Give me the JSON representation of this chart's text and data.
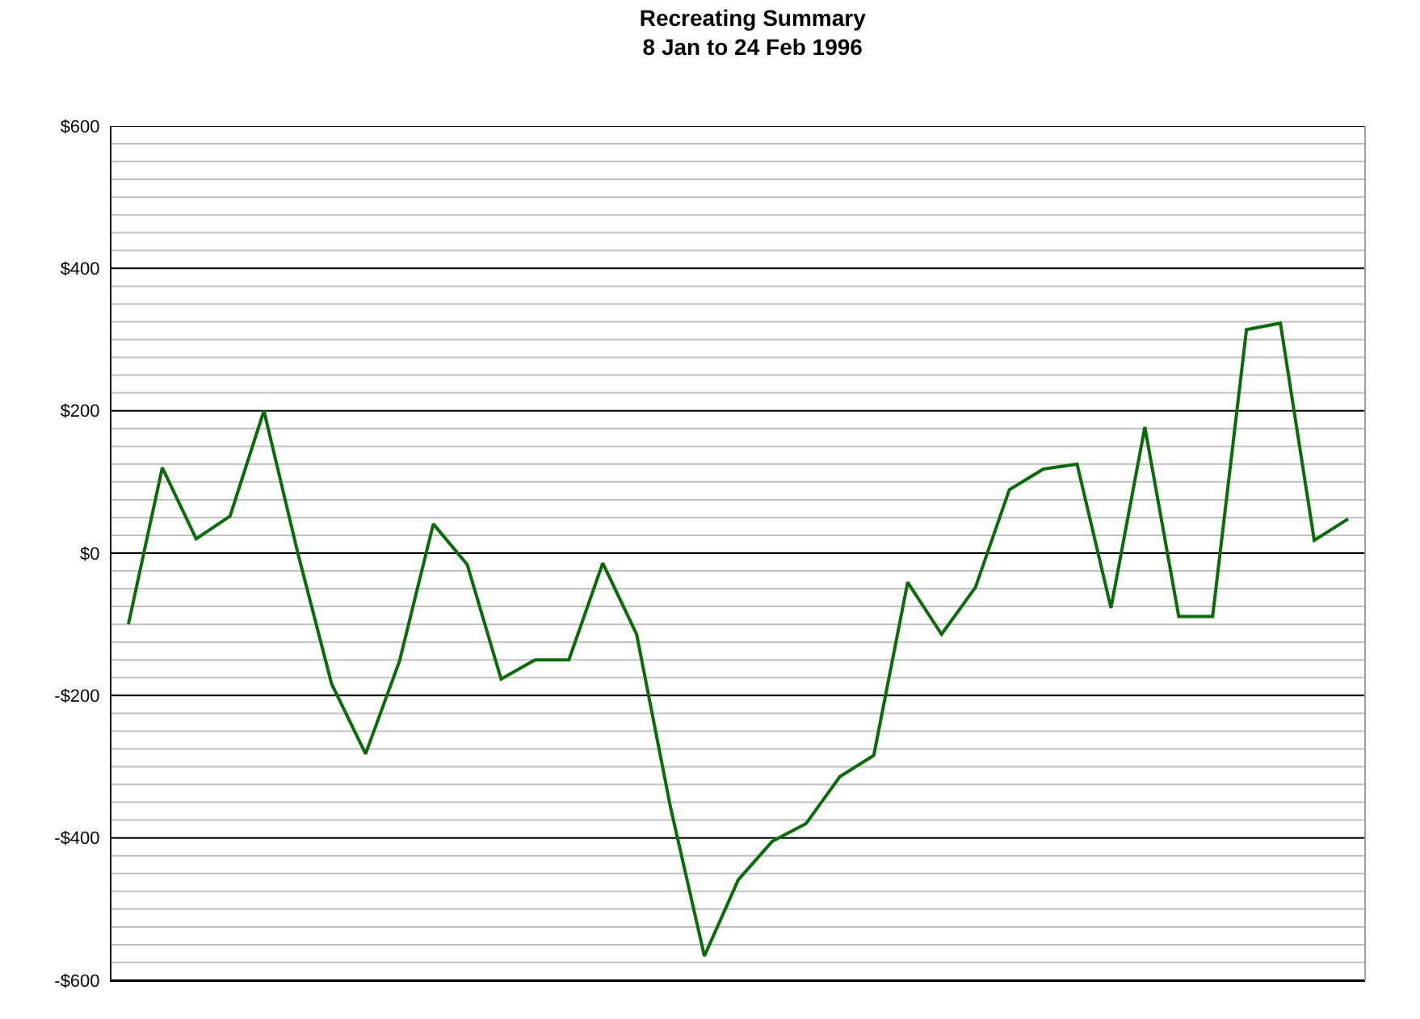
{
  "chart_data": {
    "type": "line",
    "title": "Recreating Summary\n8 Jan to 24 Feb 1996",
    "categories": [
      null,
      null,
      null,
      null,
      null,
      null,
      null,
      null,
      null,
      null,
      null,
      null,
      null,
      null,
      null,
      null,
      null,
      null,
      null,
      null,
      null,
      null,
      null,
      null,
      null,
      null,
      null,
      null,
      null,
      null,
      null,
      null,
      null,
      null,
      null,
      null,
      null
    ],
    "series": [
      {
        "color": "#0b6b0b",
        "values": [
          -100,
          120,
          20,
          52,
          200,
          0,
          -184,
          -282,
          -152,
          41,
          -16,
          -177,
          -150,
          -150,
          -14,
          -114,
          -357,
          -566,
          -459,
          -405,
          -380,
          -314,
          -284,
          -41,
          -114,
          -48,
          89,
          118,
          125,
          -77,
          177,
          -89,
          -89,
          314,
          323,
          18,
          48
        ]
      }
    ],
    "ylim": [
      -600,
      600
    ],
    "yticks": [
      {
        "value": -600,
        "label": "-$600"
      },
      {
        "value": -575,
        "label": null
      },
      {
        "value": -550,
        "label": null
      },
      {
        "value": -525,
        "label": null
      },
      {
        "value": -500,
        "label": null
      },
      {
        "value": -475,
        "label": null
      },
      {
        "value": -450,
        "label": null
      },
      {
        "value": -425,
        "label": null
      },
      {
        "value": -400,
        "label": "-$400"
      },
      {
        "value": -375,
        "label": null
      },
      {
        "value": -350,
        "label": null
      },
      {
        "value": -325,
        "label": null
      },
      {
        "value": -300,
        "label": null
      },
      {
        "value": -275,
        "label": null
      },
      {
        "value": -250,
        "label": null
      },
      {
        "value": -225,
        "label": null
      },
      {
        "value": -200,
        "label": "-$200"
      },
      {
        "value": -175,
        "label": null
      },
      {
        "value": -150,
        "label": null
      },
      {
        "value": -125,
        "label": null
      },
      {
        "value": -100,
        "label": null
      },
      {
        "value": -75,
        "label": null
      },
      {
        "value": -50,
        "label": null
      },
      {
        "value": -25,
        "label": null
      },
      {
        "value": 0,
        "label": "$0"
      },
      {
        "value": 25,
        "label": null
      },
      {
        "value": 50,
        "label": null
      },
      {
        "value": 75,
        "label": null
      },
      {
        "value": 100,
        "label": null
      },
      {
        "value": 125,
        "label": null
      },
      {
        "value": 150,
        "label": null
      },
      {
        "value": 175,
        "label": null
      },
      {
        "value": 200,
        "label": "$200"
      },
      {
        "value": 225,
        "label": null
      },
      {
        "value": 250,
        "label": null
      },
      {
        "value": 275,
        "label": null
      },
      {
        "value": 300,
        "label": null
      },
      {
        "value": 325,
        "label": null
      },
      {
        "value": 350,
        "label": null
      },
      {
        "value": 375,
        "label": null
      },
      {
        "value": 400,
        "label": "$400"
      },
      {
        "value": 425,
        "label": null
      },
      {
        "value": 450,
        "label": null
      },
      {
        "value": 475,
        "label": null
      },
      {
        "value": 500,
        "label": null
      },
      {
        "value": 525,
        "label": null
      },
      {
        "value": 550,
        "label": null
      },
      {
        "value": 575,
        "label": null
      },
      {
        "value": 600,
        "label": "$600"
      }
    ],
    "grid": "y",
    "marker": "none",
    "line_style": "solid"
  }
}
